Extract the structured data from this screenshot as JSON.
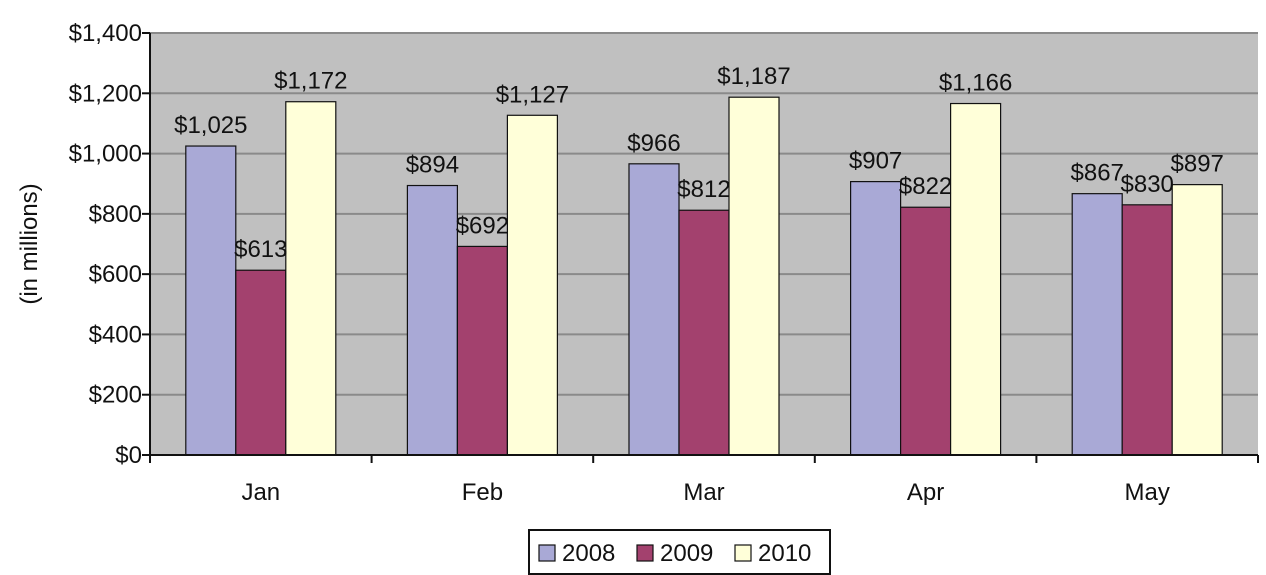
{
  "chart_data": {
    "type": "bar",
    "title": "",
    "xlabel": "",
    "ylabel": "(in millions)",
    "ylim": [
      0,
      1400
    ],
    "yticks": [
      0,
      200,
      400,
      600,
      800,
      1000,
      1200,
      1400
    ],
    "ytick_labels": [
      "$0",
      "$200",
      "$400",
      "$600",
      "$800",
      "$1,000",
      "$1,200",
      "$1,400"
    ],
    "categories": [
      "Jan",
      "Feb",
      "Mar",
      "Apr",
      "May"
    ],
    "grid": true,
    "legend_position": "bottom-center",
    "series": [
      {
        "name": "2008",
        "color": "#A9A9D6",
        "values": [
          1025,
          894,
          966,
          907,
          867
        ],
        "labels": [
          "$1,025",
          "$894",
          "$966",
          "$907",
          "$867"
        ]
      },
      {
        "name": "2009",
        "color": "#A3416E",
        "values": [
          613,
          692,
          812,
          822,
          830
        ],
        "labels": [
          "$613",
          "$692",
          "$812",
          "$822",
          "$830"
        ]
      },
      {
        "name": "2010",
        "color": "#FFFFD9",
        "values": [
          1172,
          1127,
          1187,
          1166,
          897
        ],
        "labels": [
          "$1,172",
          "$1,127",
          "$1,187",
          "$1,166",
          "$897"
        ]
      }
    ],
    "plot_background": "#C0C0C0",
    "gridline_color": "#8A8A8A",
    "bar_outline_color": "#111111"
  }
}
